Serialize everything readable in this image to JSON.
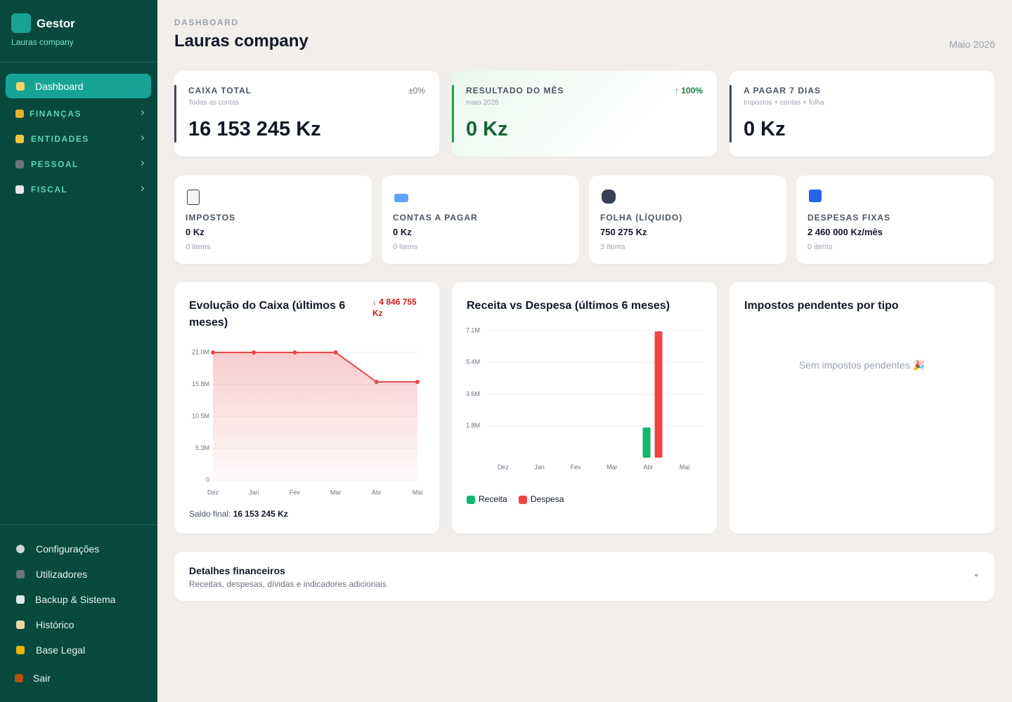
{
  "sidebar": {
    "brand": "Gestor",
    "company": "Lauras company",
    "nav": [
      "Dashboard",
      "FINANÇAS",
      "ENTIDADES",
      "PESSOAL",
      "FISCAL"
    ],
    "footer_nav": [
      "Configurações",
      "Utilizadores",
      "Backup & Sistema",
      "Histórico",
      "Base Legal",
      "Sair"
    ]
  },
  "header": {
    "eyebrow": "DASHBOARD",
    "title": "Lauras company",
    "period": "Maio 2026"
  },
  "kpis": [
    {
      "label": "CAIXA TOTAL",
      "sub": "Todas as contas",
      "change": "±0%",
      "value": "16 153 245 Kz"
    },
    {
      "label": "RESULTADO DO MÊS",
      "sub": "maio 2026",
      "change": "↑ 100%",
      "value": "0 Kz"
    },
    {
      "label": "A PAGAR 7 DIAS",
      "sub": "Impostos + contas + folha",
      "value": "0 Kz"
    }
  ],
  "cards": [
    {
      "label": "IMPOSTOS",
      "value": "0 Kz",
      "count": "0 items"
    },
    {
      "label": "CONTAS A PAGAR",
      "value": "0 Kz",
      "count": "0 items"
    },
    {
      "label": "FOLHA (LÍQUIDO)",
      "value": "750 275 Kz",
      "count": "3 items"
    },
    {
      "label": "DESPESAS FIXAS",
      "value": "2 460 000 Kz/mês",
      "count": "0 items"
    }
  ],
  "cash_chart": {
    "type": "line",
    "title": "Evolução do Caixa (últimos 6 meses)",
    "delta": "↓ 4 846 755 Kz",
    "categories": [
      "Dez",
      "Jan",
      "Fev",
      "Mar",
      "Abr",
      "Mai"
    ],
    "values": [
      21000000,
      21000000,
      21000000,
      21000000,
      16153245,
      16153245
    ],
    "color": "#e5484d",
    "ylim": [
      0,
      21000000
    ],
    "yticks": [
      0,
      {
        "value": 5250000,
        "label": "5.3M"
      },
      {
        "value": 10500000,
        "label": "10.5M"
      },
      {
        "value": 15750000,
        "label": "15.8M"
      },
      {
        "value": 21000000,
        "label": "21.0M"
      }
    ],
    "grid": true,
    "footer_label": "Saldo final:",
    "footer_value": "16 153 245 Kz"
  },
  "flow_chart": {
    "type": "bar",
    "title": "Receita vs Despesa (últimos 6 meses)",
    "categories": [
      "Dez",
      "Jan",
      "Fev",
      "Mar",
      "Abr",
      "Mai"
    ],
    "series": [
      {
        "name": "Receita",
        "color": "#10b96b",
        "values": [
          0,
          0,
          0,
          0,
          1700000,
          0
        ]
      },
      {
        "name": "Despesa",
        "color": "#ef4444",
        "values": [
          0,
          0,
          0,
          0,
          7100000,
          0
        ]
      }
    ],
    "ylim": [
      0,
      7140000
    ],
    "yticks": [
      {
        "value": 1785000,
        "label": "1.8M"
      },
      {
        "value": 3570000,
        "label": "3.6M"
      },
      {
        "value": 5355000,
        "label": "5.4M"
      },
      {
        "value": 7140000,
        "label": "7.1M"
      }
    ],
    "grid": true
  },
  "tax_panel": {
    "title": "Impostos pendentes por tipo",
    "empty": "Sem impostos pendentes 🎉"
  },
  "details": {
    "title": "Detalhes financeiros",
    "subtitle": "Receitas, despesas, dívidas e indicadores adicionais"
  }
}
